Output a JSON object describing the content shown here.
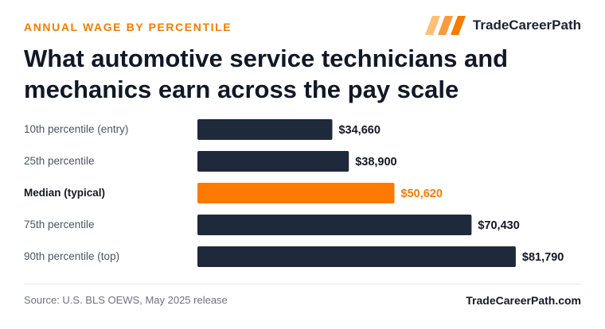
{
  "header": {
    "eyebrow": "ANNUAL WAGE BY PERCENTILE",
    "brand_name": "TradeCareerPath",
    "title": "What automotive service technicians and mechanics earn across the pay scale"
  },
  "footer": {
    "source": "Source: U.S. BLS OEWS, May 2025 release",
    "site": "TradeCareerPath.com"
  },
  "colors": {
    "bar": "#1e293b",
    "highlight": "#ff7a00",
    "label": "#475569",
    "value": "#111827"
  },
  "chart_data": {
    "type": "bar",
    "orientation": "horizontal",
    "categories": [
      "10th percentile (entry)",
      "25th percentile",
      "Median (typical)",
      "75th percentile",
      "90th percentile (top)"
    ],
    "values": [
      34660,
      38900,
      50620,
      70430,
      81790
    ],
    "value_labels": [
      "$34,660",
      "$38,900",
      "$50,620",
      "$70,430",
      "$81,790"
    ],
    "highlight_index": 2,
    "xlim": [
      0,
      100000
    ],
    "grid": false,
    "title": "",
    "xlabel": "",
    "ylabel": ""
  }
}
